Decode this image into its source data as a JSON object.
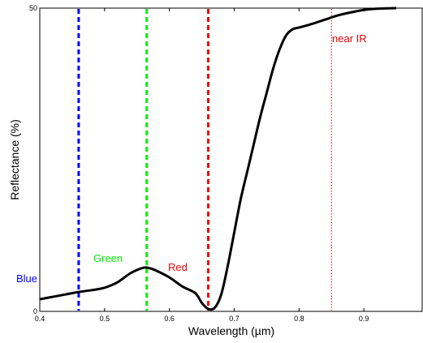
{
  "chart_data": {
    "type": "line",
    "xlabel": "Wavelength (µm)",
    "ylabel": "Reflectance (%)",
    "xlim": [
      0.4,
      0.99
    ],
    "ylim": [
      0,
      50
    ],
    "x_ticks": [
      0.4,
      0.5,
      0.6,
      0.7,
      0.8,
      0.9
    ],
    "y_ticks": [
      0,
      50
    ],
    "x_tick_labels": [
      "0.4",
      "0.5",
      "0.6",
      "0.7",
      "0.8",
      "0.9"
    ],
    "y_tick_labels": [
      "0",
      "50"
    ],
    "grid": false,
    "series": [
      {
        "color": "#000000",
        "x": [
          0.4,
          0.42,
          0.44,
          0.46,
          0.48,
          0.5,
          0.52,
          0.54,
          0.56,
          0.57,
          0.58,
          0.6,
          0.62,
          0.64,
          0.65,
          0.66,
          0.67,
          0.68,
          0.69,
          0.7,
          0.71,
          0.72,
          0.73,
          0.74,
          0.75,
          0.76,
          0.77,
          0.78,
          0.79,
          0.8,
          0.82,
          0.84,
          0.86,
          0.88,
          0.9,
          0.92,
          0.95
        ],
        "y": [
          2.0,
          2.4,
          2.8,
          3.2,
          3.5,
          3.9,
          4.8,
          6.3,
          7.2,
          7.1,
          6.7,
          5.6,
          4.1,
          3.0,
          1.4,
          0.4,
          0.6,
          2.8,
          7.5,
          13.0,
          18.5,
          23.0,
          27.5,
          32.0,
          36.0,
          40.0,
          43.2,
          45.5,
          46.5,
          46.8,
          47.4,
          48.1,
          48.8,
          49.3,
          49.7,
          49.9,
          50.0
        ]
      }
    ],
    "bands": [
      {
        "label": "Blue",
        "x": 0.46,
        "color": "#0000ff",
        "style": "dashed"
      },
      {
        "label": "Green",
        "x": 0.565,
        "color": "#00ee00",
        "style": "dashed"
      },
      {
        "label": "Red",
        "x": 0.66,
        "color": "#ee0000",
        "style": "dashed"
      },
      {
        "label": "near IR",
        "x": 0.85,
        "color": "#dd0000",
        "style": "dotted"
      }
    ]
  }
}
